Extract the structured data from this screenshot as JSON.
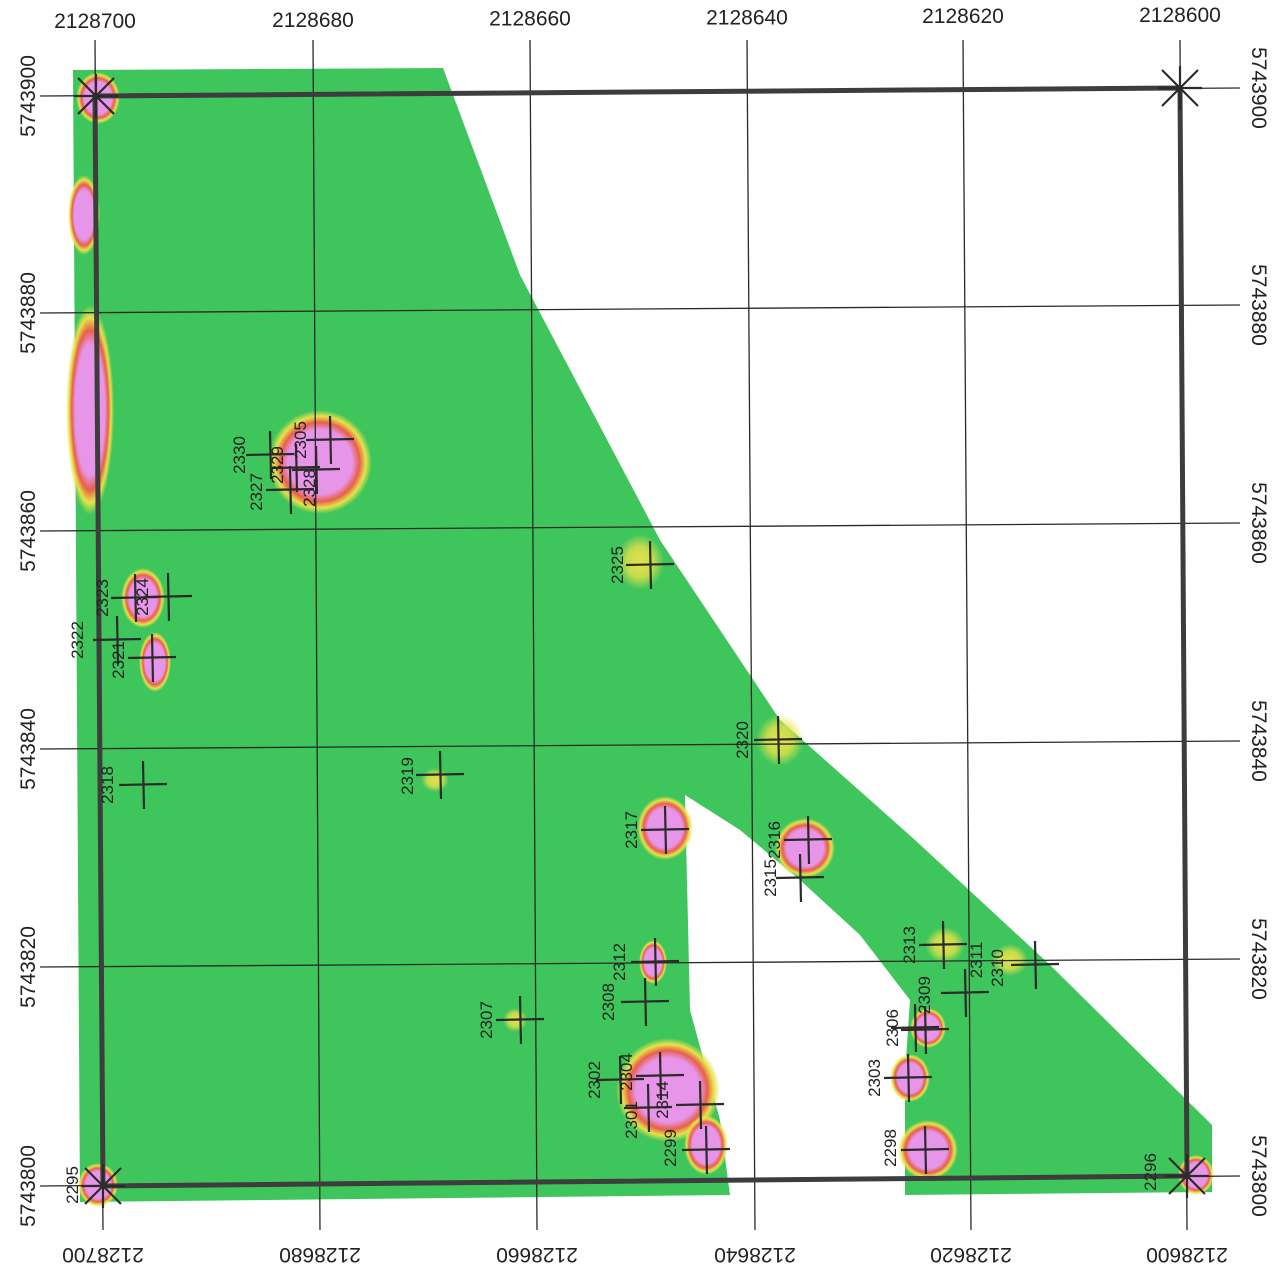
{
  "colors": {
    "field": "#3ec55b",
    "anomaly_inner": "#e795e9",
    "anomaly_mid": "#e8604a",
    "anomaly_outer": "#e6e24a",
    "grid": "#2a2a2a",
    "frame": "#3d3d3d"
  },
  "axes": {
    "top_ticks": [
      "2128700",
      "2128680",
      "2128660",
      "2128640",
      "2128620",
      "2128600"
    ],
    "bottom_ticks": [
      "2128700",
      "2128680",
      "2128660",
      "2128640",
      "2128620",
      "2128600"
    ],
    "left_ticks": [
      "5743900",
      "5743880",
      "5743860",
      "5743840",
      "5743820",
      "5743800"
    ],
    "right_ticks": [
      "5743900",
      "5743880",
      "5743860",
      "5743840",
      "5743820",
      "5743800"
    ]
  },
  "corner_markers": [
    {
      "name": "corner-nw",
      "label": ""
    },
    {
      "name": "corner-ne",
      "label": ""
    },
    {
      "name": "corner-sw",
      "label": "2295"
    },
    {
      "name": "corner-se",
      "label": "2296"
    }
  ],
  "survey_points": [
    {
      "id": "2330"
    },
    {
      "id": "2327"
    },
    {
      "id": "2329"
    },
    {
      "id": "2305"
    },
    {
      "id": "2328"
    },
    {
      "id": "2325"
    },
    {
      "id": "2323"
    },
    {
      "id": "2324"
    },
    {
      "id": "2322"
    },
    {
      "id": "2321"
    },
    {
      "id": "2318"
    },
    {
      "id": "2319"
    },
    {
      "id": "2320"
    },
    {
      "id": "2317"
    },
    {
      "id": "2316"
    },
    {
      "id": "2315"
    },
    {
      "id": "2313"
    },
    {
      "id": "2311"
    },
    {
      "id": "2310"
    },
    {
      "id": "2309"
    },
    {
      "id": "2312"
    },
    {
      "id": "2308"
    },
    {
      "id": "2307"
    },
    {
      "id": "2306"
    },
    {
      "id": "2302"
    },
    {
      "id": "2304"
    },
    {
      "id": "2303"
    },
    {
      "id": "2301"
    },
    {
      "id": "2314"
    },
    {
      "id": "2299"
    },
    {
      "id": "2298"
    }
  ]
}
